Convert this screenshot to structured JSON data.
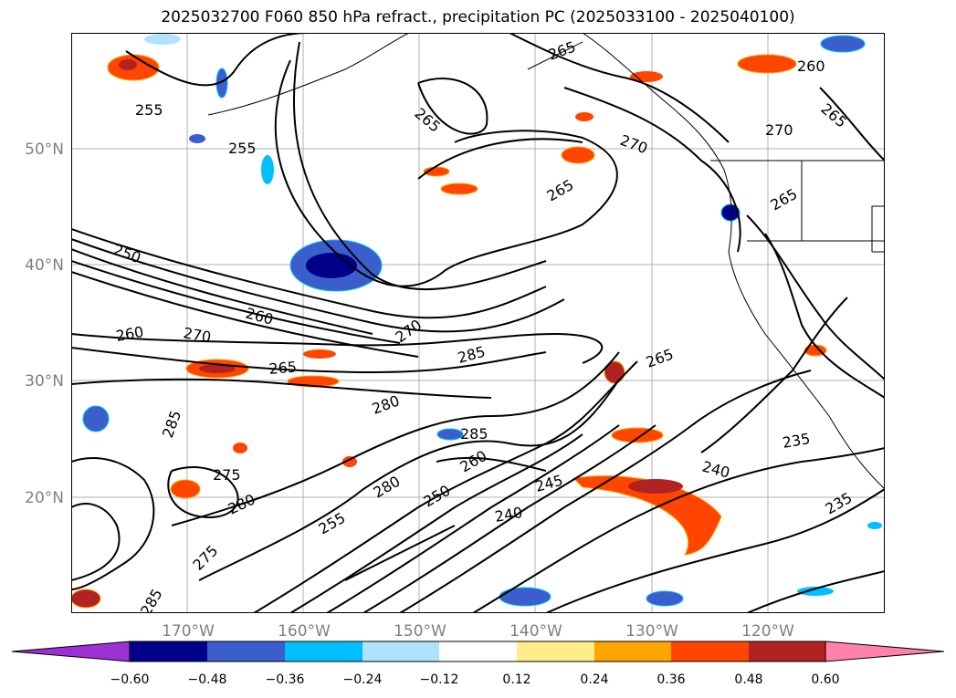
{
  "title": "2025032700 F060 850 hPa refract., precipitation PC (2025033100 - 2025040100)",
  "map": {
    "lon_labels": [
      "170°W",
      "160°W",
      "150°W",
      "140°W",
      "130°W",
      "120°W"
    ],
    "lat_labels": [
      "50°N",
      "40°N",
      "30°N",
      "20°N"
    ],
    "contour_labels": [
      "255",
      "255",
      "260",
      "255",
      "265",
      "270",
      "265",
      "260",
      "265",
      "270",
      "265",
      "265",
      "250",
      "260",
      "270",
      "260",
      "265",
      "270",
      "285",
      "265",
      "280",
      "285",
      "285",
      "275",
      "280",
      "235",
      "240",
      "235",
      "245",
      "240",
      "260",
      "250",
      "280",
      "255",
      "275",
      "285"
    ]
  },
  "colorbar": {
    "ticks": [
      "−0.60",
      "−0.48",
      "−0.36",
      "−0.24",
      "−0.12",
      "0.12",
      "0.24",
      "0.36",
      "0.48",
      "0.60"
    ],
    "colors": [
      "#9b30d4",
      "#00008b",
      "#3a5fcd",
      "#00bfff",
      "#b0e2ff",
      "#ffffff",
      "#ffec8b",
      "#ffa500",
      "#ff4500",
      "#b22222",
      "#ff82ab"
    ]
  }
}
